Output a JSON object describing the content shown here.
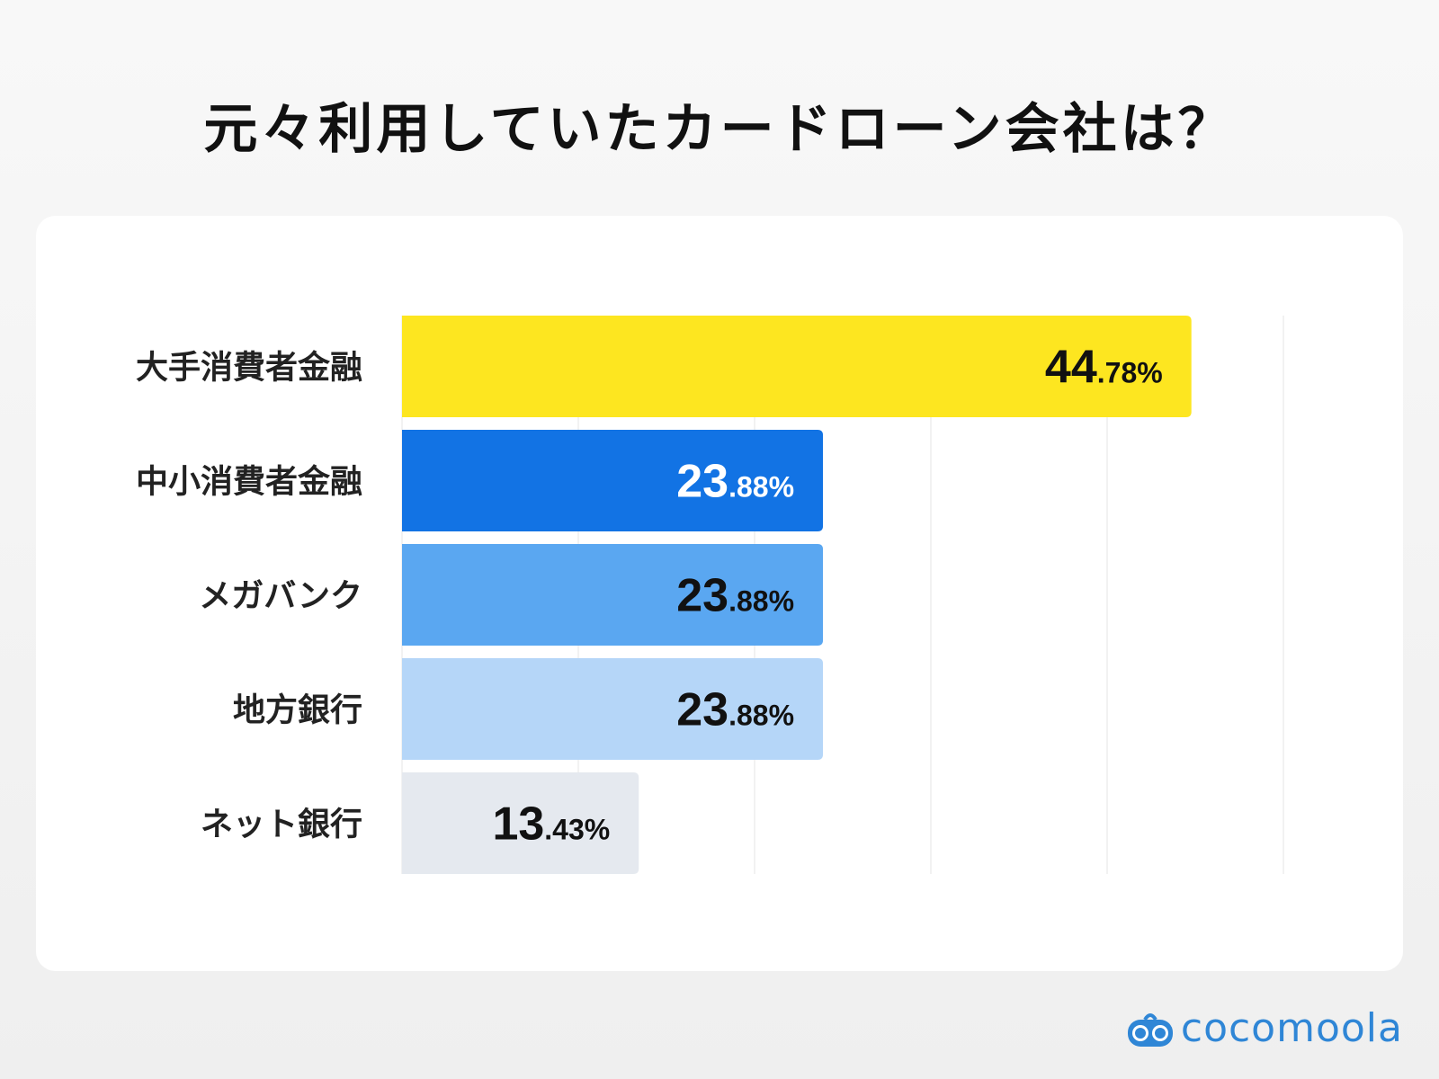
{
  "chart_data": {
    "type": "bar",
    "orientation": "horizontal",
    "title": "元々利用していたカードローン会社は？",
    "categories": [
      "大手消費者金融",
      "中小消費者金融",
      "メガバンク",
      "地方銀行",
      "ネット銀行"
    ],
    "values": [
      44.78,
      23.88,
      23.88,
      23.88,
      13.43
    ],
    "value_labels": [
      {
        "int": "44",
        "dec": ".78%"
      },
      {
        "int": "23",
        "dec": ".88%"
      },
      {
        "int": "23",
        "dec": ".88%"
      },
      {
        "int": "23",
        "dec": ".88%"
      },
      {
        "int": "13",
        "dec": ".43%"
      }
    ],
    "colors": [
      "#fde620",
      "#1273e4",
      "#5aa7f1",
      "#b5d6f8",
      "#e5e9ef"
    ],
    "label_colors": [
      "#111111",
      "#ffffff",
      "#111111",
      "#111111",
      "#111111"
    ],
    "xlim": [
      0,
      50
    ],
    "gridlines": [
      10,
      20,
      30,
      40,
      50
    ],
    "grid": true,
    "legend": "none"
  },
  "brand": {
    "name": "cocomoola",
    "color": "#2f86d6"
  }
}
